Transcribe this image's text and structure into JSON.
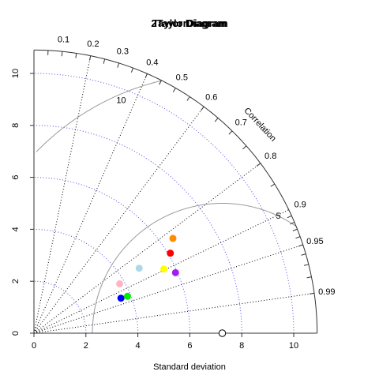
{
  "chart_data": {
    "type": "scatter",
    "subtype": "taylor-diagram",
    "title": "2TaylorDiagram",
    "overlay_title": "Taylor Diagram",
    "xlabel": "Standard deviation",
    "ylabel": "",
    "corr_axis_label": "Correlation",
    "xlim": [
      0,
      10.9
    ],
    "ylim": [
      0,
      10.9
    ],
    "x_ticks": [
      0,
      2,
      4,
      6,
      8,
      10
    ],
    "y_ticks": [
      0,
      2,
      4,
      6,
      8,
      10
    ],
    "sd_arcs": [
      2,
      4,
      6,
      8,
      10
    ],
    "correlation_ticks": [
      "0.1",
      "0.2",
      "0.3",
      "0.4",
      "0.5",
      "0.6",
      "0.7",
      "0.8",
      "0.9",
      "0.95",
      "0.99"
    ],
    "correlation_lines": [
      0.2,
      0.4,
      0.6,
      0.8,
      0.9,
      0.95,
      0.99
    ],
    "reference": {
      "sd": 7.25
    },
    "rms_contours": [
      5,
      10
    ],
    "grid": true,
    "points": [
      {
        "sd_x": 3.35,
        "sd_y": 1.35,
        "color": "#0000ff"
      },
      {
        "sd_x": 3.6,
        "sd_y": 1.42,
        "color": "#00ee00"
      },
      {
        "sd_x": 3.3,
        "sd_y": 1.9,
        "color": "#ffb6c1"
      },
      {
        "sd_x": 4.05,
        "sd_y": 2.5,
        "color": "#add8e6"
      },
      {
        "sd_x": 5.0,
        "sd_y": 2.47,
        "color": "#ffff00"
      },
      {
        "sd_x": 5.45,
        "sd_y": 2.33,
        "color": "#a020f0"
      },
      {
        "sd_x": 5.25,
        "sd_y": 3.08,
        "color": "#ff0000"
      },
      {
        "sd_x": 5.35,
        "sd_y": 3.65,
        "color": "#ff8c00"
      }
    ]
  }
}
